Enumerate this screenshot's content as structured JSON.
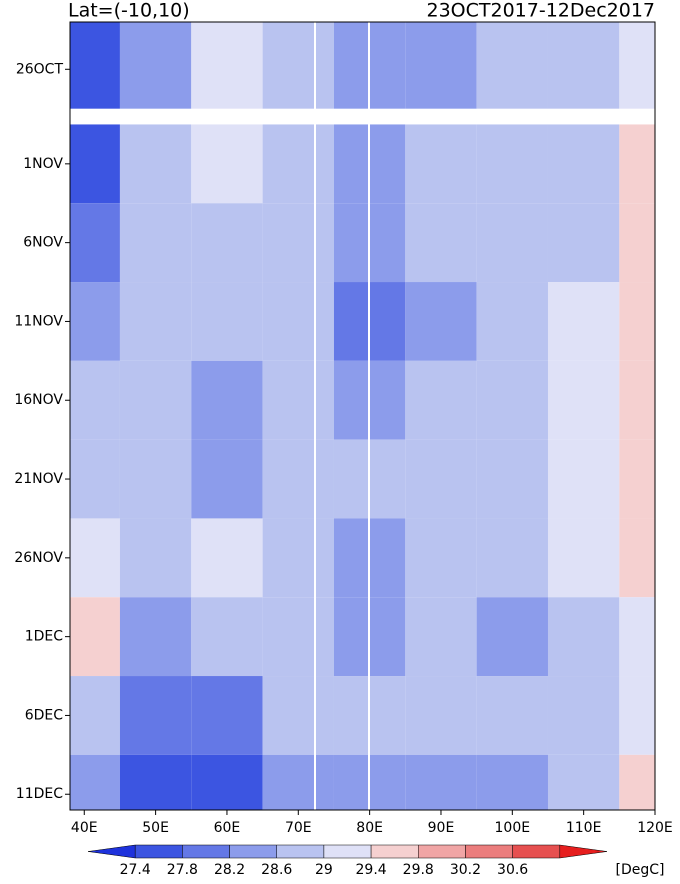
{
  "chart_data": {
    "type": "heatmap",
    "title_left": "Lat=(-10,10)",
    "title_right": "23OCT2017-12Dec2017",
    "x": [
      40,
      50,
      60,
      70,
      80,
      90,
      100,
      110,
      120
    ],
    "y": [
      "2017-10-26",
      "2017-11-01",
      "2017-11-06",
      "2017-11-11",
      "2017-11-16",
      "2017-11-21",
      "2017-11-26",
      "2017-12-01",
      "2017-12-06",
      "2017-12-11"
    ],
    "z": [
      [
        27.4,
        28.2,
        29.0,
        28.8,
        28.4,
        28.4,
        28.6,
        28.8,
        29.0
      ],
      [
        27.6,
        28.6,
        29.0,
        28.8,
        28.4,
        28.6,
        28.8,
        28.8,
        29.4
      ],
      [
        27.8,
        28.8,
        28.8,
        28.6,
        28.2,
        28.6,
        28.8,
        28.8,
        29.6
      ],
      [
        28.2,
        28.6,
        28.6,
        28.6,
        27.8,
        28.4,
        28.6,
        29.0,
        29.4
      ],
      [
        28.6,
        28.6,
        28.4,
        28.6,
        28.4,
        28.8,
        28.8,
        29.0,
        29.4
      ],
      [
        28.6,
        28.6,
        28.4,
        28.6,
        28.6,
        28.8,
        28.6,
        29.0,
        29.6
      ],
      [
        29.0,
        28.6,
        29.0,
        28.8,
        28.4,
        28.8,
        28.6,
        29.2,
        29.4
      ],
      [
        29.4,
        28.2,
        28.8,
        28.6,
        28.4,
        28.6,
        28.4,
        28.6,
        29.2
      ],
      [
        28.8,
        27.8,
        28.0,
        28.6,
        28.6,
        28.6,
        28.6,
        28.8,
        29.2
      ],
      [
        28.4,
        27.4,
        27.6,
        28.4,
        28.4,
        28.4,
        28.4,
        28.8,
        29.4
      ]
    ],
    "xlim": [
      38,
      120
    ],
    "xticks": [
      {
        "value": 40,
        "label": "40E"
      },
      {
        "value": 50,
        "label": "50E"
      },
      {
        "value": 60,
        "label": "60E"
      },
      {
        "value": 70,
        "label": "70E"
      },
      {
        "value": 80,
        "label": "80E"
      },
      {
        "value": 90,
        "label": "90E"
      },
      {
        "value": 100,
        "label": "100E"
      },
      {
        "value": 110,
        "label": "110E"
      },
      {
        "value": 120,
        "label": "120E"
      }
    ],
    "ylim": [
      "2017-10-23",
      "2017-12-12"
    ],
    "yticks": [
      {
        "value": "2017-10-26",
        "label": "26OCT"
      },
      {
        "value": "2017-11-01",
        "label": "1NOV"
      },
      {
        "value": "2017-11-06",
        "label": "6NOV"
      },
      {
        "value": "2017-11-11",
        "label": "11NOV"
      },
      {
        "value": "2017-11-16",
        "label": "16NOV"
      },
      {
        "value": "2017-11-21",
        "label": "21NOV"
      },
      {
        "value": "2017-11-26",
        "label": "26NOV"
      },
      {
        "value": "2017-12-01",
        "label": "1DEC"
      },
      {
        "value": "2017-12-06",
        "label": "6DEC"
      },
      {
        "value": "2017-12-11",
        "label": "11DEC"
      }
    ],
    "colorbar": {
      "levels": [
        27.4,
        27.8,
        28.2,
        28.6,
        29,
        29.4,
        29.8,
        30.2,
        30.6
      ],
      "colors": [
        "#1e32dc",
        "#3c55e1",
        "#6478e6",
        "#8c9ceb",
        "#b9c3f0",
        "#dfe1f7",
        "#f5d0d0",
        "#f0a5a5",
        "#eb7d7d",
        "#e65050",
        "#e61e1e"
      ],
      "unit": "[DegC]"
    }
  }
}
